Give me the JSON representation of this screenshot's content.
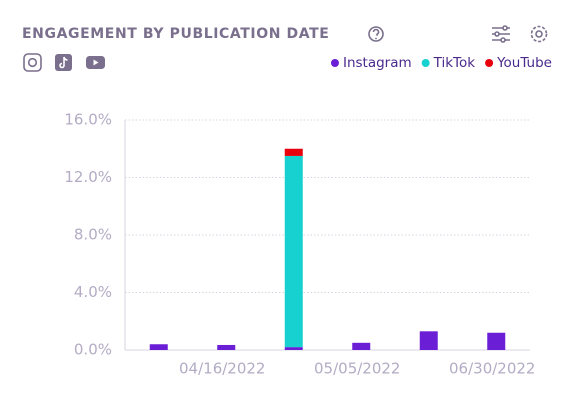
{
  "chart_data": {
    "type": "stacked-bar",
    "title": "ENGAGEMENT BY PUBLICATION DATE",
    "categories": [
      null,
      "04/16/2022",
      null,
      "05/05/2022",
      null,
      "06/30/2022"
    ],
    "series": [
      {
        "name": "Instagram",
        "color": "#6a1fd6",
        "values": [
          0.4,
          0.35,
          0.2,
          0.5,
          1.3,
          1.2
        ]
      },
      {
        "name": "TikTok",
        "color": "#17d1d0",
        "values": [
          0,
          0,
          13.3,
          0,
          0,
          0
        ]
      },
      {
        "name": "YouTube",
        "color": "#e8000d",
        "values": [
          0,
          0,
          0.5,
          0,
          0,
          0
        ]
      }
    ],
    "ylim": [
      0,
      16
    ],
    "yticks": [
      {
        "value": 0,
        "label": "0.0%"
      },
      {
        "value": 4,
        "label": "4.0%"
      },
      {
        "value": 8,
        "label": "8.0%"
      },
      {
        "value": 12,
        "label": "12.0%"
      },
      {
        "value": 16,
        "label": "16.0%"
      }
    ],
    "grid": true,
    "legend": "top-right"
  }
}
